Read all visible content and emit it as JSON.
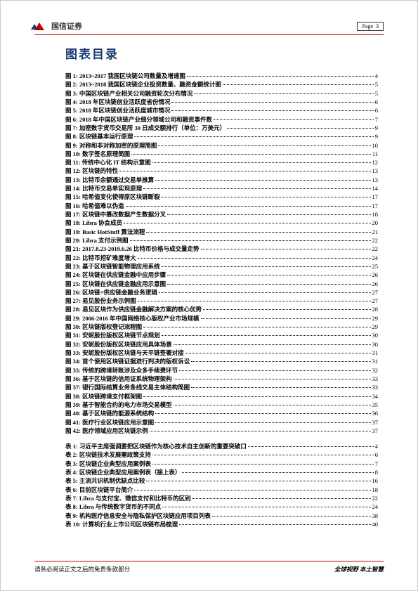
{
  "header": {
    "company": "国信证券",
    "page_label": "Page",
    "page_num": "3"
  },
  "title": "图表目录",
  "figures": [
    {
      "n": "图 1:",
      "t": "2013~2017 我国区块链公司数量及增速图",
      "p": "4"
    },
    {
      "n": "图 2:",
      "t": "2013~2018 我国区块链企业投资数量、融资金额统计图",
      "p": "5"
    },
    {
      "n": "图 3:",
      "t": "中国区块链产业相关公司融资轮次分布情况",
      "p": "5"
    },
    {
      "n": "图 4:",
      "t": "2018 年区块链创业活跃度省份情况",
      "p": "6"
    },
    {
      "n": "图 5:",
      "t": "2018 年区块链创业活跃度城市情况",
      "p": "6"
    },
    {
      "n": "图 6:",
      "t": "2018 年中国区块链产业细分领域公司和融资事件数",
      "p": "7"
    },
    {
      "n": "图 7:",
      "t": "加密数字货币交易所 30 日成交额排行（单位：万美元）",
      "p": "9"
    },
    {
      "n": "图 8:",
      "t": "区块链基本运行原理",
      "p": "9"
    },
    {
      "n": "图 9:",
      "t": "对称和非对称加密的原理简图",
      "p": "10"
    },
    {
      "n": "图 10:",
      "t": "数字签名原理简图",
      "p": "11"
    },
    {
      "n": "图 11:",
      "t": "传统中心化 IT 结构示意图",
      "p": "12"
    },
    {
      "n": "图 12:",
      "t": "区块链的特性",
      "p": "13"
    },
    {
      "n": "图 13:",
      "t": "比特币余额通过交易单推算",
      "p": "13"
    },
    {
      "n": "图 14:",
      "t": "比特币交易单实现原理",
      "p": "14"
    },
    {
      "n": "图 15:",
      "t": "哈希值变化使得原区块链断裂",
      "p": "17"
    },
    {
      "n": "图 16:",
      "t": "哈希值难以伪造",
      "p": "17"
    },
    {
      "n": "图 17:",
      "t": "区块链中篡改数据产生数据分叉",
      "p": "18"
    },
    {
      "n": "图 18:",
      "t": "Libra 协会成员",
      "p": "20"
    },
    {
      "n": "图 19:",
      "t": "Basic HotStuff 算法流程",
      "p": "21"
    },
    {
      "n": "图 20:",
      "t": "Libra 支付示例图",
      "p": "22"
    },
    {
      "n": "图 21:",
      "t": "2017.8.23-2019.6.26 比特币价格与成交量走势",
      "p": "22"
    },
    {
      "n": "图 22:",
      "t": "比特币挖矿难度增大",
      "p": "24"
    },
    {
      "n": "图 23:",
      "t": "基于区块链智能物理应用系统",
      "p": "25"
    },
    {
      "n": "图 24:",
      "t": "区块链在供应链金融中应用步骤",
      "p": "26"
    },
    {
      "n": "图 25:",
      "t": "区块链在供应链金融应用示意图",
      "p": "26"
    },
    {
      "n": "图 26:",
      "t": "区块链+供应链金融业务逻辑",
      "p": "27"
    },
    {
      "n": "图 27:",
      "t": "易见股份业务示例图",
      "p": "27"
    },
    {
      "n": "图 28:",
      "t": "易见区块作为供应链金融解决方案的核心优势",
      "p": "28"
    },
    {
      "n": "图 29:",
      "t": "2006-2016 年中国网络核心版权产业市场规模",
      "p": "29"
    },
    {
      "n": "图 30:",
      "t": "区块链版权登记流程图",
      "p": "29"
    },
    {
      "n": "图 31:",
      "t": "安妮股份版权区块链节点规划",
      "p": "30"
    },
    {
      "n": "图 32:",
      "t": "安妮股份版权区块链应用具体场景",
      "p": "30"
    },
    {
      "n": "图 33:",
      "t": "安妮股份版权区块链与天平链签署对接",
      "p": "31"
    },
    {
      "n": "图 34:",
      "t": "首个使用区块链证据进行判决的版权诉讼",
      "p": "31"
    },
    {
      "n": "图 35:",
      "t": "传统的跨境转账涉及众多手续费环节",
      "p": "32"
    },
    {
      "n": "图 36:",
      "t": "基于区块链的信用证系统物理架构",
      "p": "33"
    },
    {
      "n": "图 37:",
      "t": "银行国际结算业务条线交易主体结构简图",
      "p": "33"
    },
    {
      "n": "图 38:",
      "t": "区块链跨境支付框架图",
      "p": "34"
    },
    {
      "n": "图 39:",
      "t": "基于智能合约的电力市场交易模型",
      "p": "35"
    },
    {
      "n": "图 40:",
      "t": "基于区块链的能源系统结构",
      "p": "36"
    },
    {
      "n": "图 41:",
      "t": "医疗行业区块链应用示意图",
      "p": "37"
    },
    {
      "n": "图 42:",
      "t": "医疗领域应用区块链示例",
      "p": "37"
    }
  ],
  "tables": [
    {
      "n": "表 1:",
      "t": "习近平主席强调要把区块链作为核心技术自主创新的重要突破口",
      "p": "4"
    },
    {
      "n": "表 2:",
      "t": "区块链技术发展需政策支持",
      "p": "6"
    },
    {
      "n": "表 3:",
      "t": "区块链企业典型应用案例表",
      "p": "7"
    },
    {
      "n": "表 4:",
      "t": "区块链企业典型应用案例表（接上表）",
      "p": "8"
    },
    {
      "n": "表 5:",
      "t": "主流共识机制优缺点比较",
      "p": "16"
    },
    {
      "n": "表 6:",
      "t": "目前区块链平台简介",
      "p": "18"
    },
    {
      "n": "表 7:",
      "t": "Libra 与支付宝、微信支付和比特币的区别",
      "p": "22"
    },
    {
      "n": "表 8:",
      "t": "Libra 与传统数字货币的不同点",
      "p": "24"
    },
    {
      "n": "表 9:",
      "t": "机构医疗信息安全与隐私保护区块链应用项目列表",
      "p": "38"
    },
    {
      "n": "表 10:",
      "t": "计算机行业上市公司区块链布局梳理",
      "p": "40"
    }
  ],
  "footer": {
    "left": "请务必阅读正文之后的免责条款部分",
    "right": "全球视野  本土智慧"
  }
}
